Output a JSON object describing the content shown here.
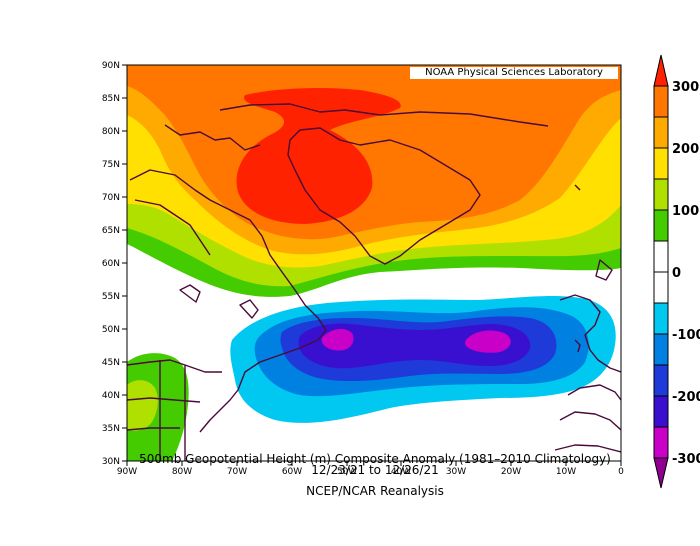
{
  "credit": "NOAA Physical Sciences Laboratory",
  "captions": {
    "line1": "500mb Geopotential Height (m) Composite Anomaly (1981–2010 Climatology)",
    "line2": "12/23/21  to 12/26/21",
    "line3": "NCEP/NCAR Reanalysis"
  },
  "lat_ticks": [
    "90N",
    "85N",
    "80N",
    "75N",
    "70N",
    "65N",
    "60N",
    "55N",
    "50N",
    "45N",
    "40N",
    "35N",
    "30N"
  ],
  "lon_ticks": [
    "90W",
    "80W",
    "70W",
    "60W",
    "50W",
    "40W",
    "30W",
    "20W",
    "10W",
    "0"
  ],
  "colorbar": {
    "labels": [
      "300",
      "200",
      "100",
      "0",
      "-100",
      "-200",
      "-300"
    ],
    "colors": [
      "#ff2200",
      "#ff7700",
      "#ffaa00",
      "#ffe000",
      "#b0e000",
      "#44cc00",
      "#ffffff",
      "#ffffff",
      "#00c8f0",
      "#0080e0",
      "#1e3ad8",
      "#3a10d0",
      "#c800c8",
      "#900090"
    ]
  },
  "chart_data": {
    "type": "heatmap",
    "variable": "500mb Geopotential Height (m) Composite Anomaly",
    "domain": {
      "lon": [
        -90,
        0
      ],
      "lat": [
        30,
        90
      ]
    },
    "levels": [
      -300,
      -250,
      -200,
      -150,
      -100,
      -50,
      0,
      50,
      100,
      150,
      200,
      250,
      300
    ],
    "features": [
      {
        "kind": "positive anomaly max",
        "lon": -58,
        "lat": 73,
        "value": 300
      },
      {
        "kind": "negative anomaly min",
        "lon": -52,
        "lat": 48,
        "value": -250
      },
      {
        "kind": "negative anomaly min",
        "lon": -25,
        "lat": 48,
        "value": -250
      }
    ]
  }
}
